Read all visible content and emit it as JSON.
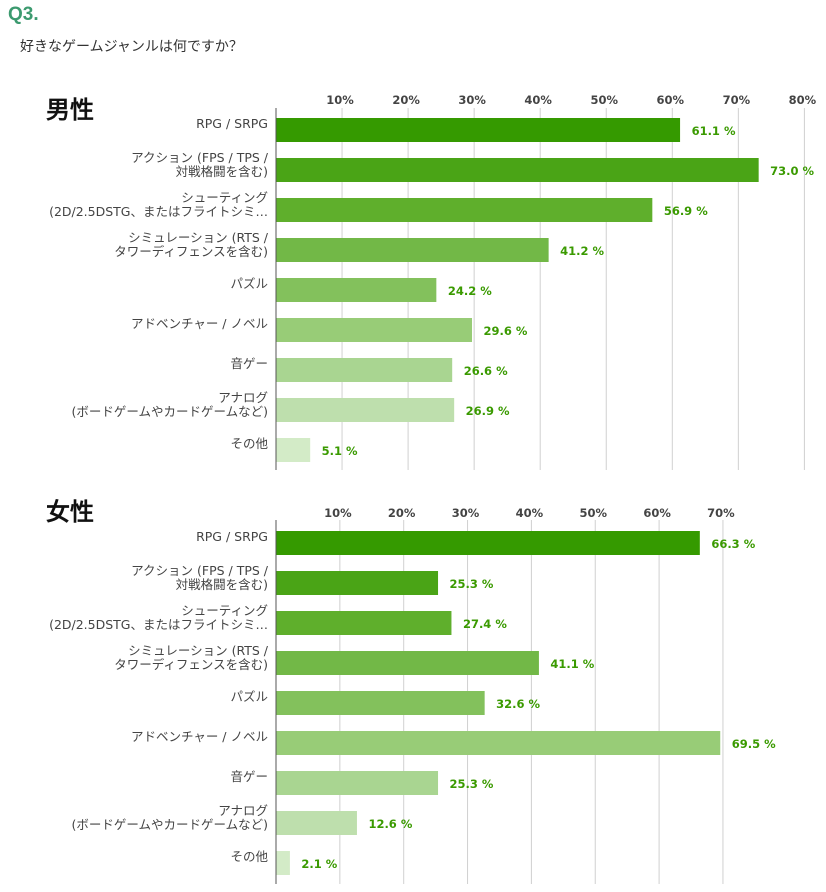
{
  "question": {
    "number": "Q3.",
    "text": "好きなゲームジャンルは何ですか？"
  },
  "palette": [
    "#359a00",
    "#4aa416",
    "#5faf2c",
    "#72b847",
    "#83c15c",
    "#98cc77",
    "#a9d591",
    "#bedfad",
    "#d3ebc7"
  ],
  "chart_data": [
    {
      "type": "bar",
      "orientation": "horizontal",
      "title": "男性",
      "categories": [
        [
          "RPG / SRPG"
        ],
        [
          "アクション (FPS / TPS /",
          "対戦格闘を含む)"
        ],
        [
          "シューティング",
          "(2D/2.5DSTG、またはフライトシミ…"
        ],
        [
          "シミュレーション (RTS /",
          "タワーディフェンスを含む)"
        ],
        [
          "パズル"
        ],
        [
          "アドベンチャー / ノベル"
        ],
        [
          "音ゲー"
        ],
        [
          "アナログ",
          "(ボードゲームやカードゲームなど)"
        ],
        [
          "その他"
        ]
      ],
      "values": [
        61.1,
        73.0,
        56.9,
        41.2,
        24.2,
        29.6,
        26.6,
        26.9,
        5.1
      ],
      "value_labels": [
        "61.1 %",
        "73.0 %",
        "56.9 %",
        "41.2 %",
        "24.2 %",
        "29.6 %",
        "26.6 %",
        "26.9 %",
        "5.1 %"
      ],
      "xticks": [
        10,
        20,
        30,
        40,
        50,
        60,
        70,
        80
      ],
      "xtick_labels": [
        "10%",
        "20%",
        "30%",
        "40%",
        "50%",
        "60%",
        "70%",
        "80%"
      ],
      "xlim": [
        0,
        80
      ],
      "grid": true,
      "xlabel": "",
      "ylabel": ""
    },
    {
      "type": "bar",
      "orientation": "horizontal",
      "title": "女性",
      "categories": [
        [
          "RPG / SRPG"
        ],
        [
          "アクション (FPS / TPS /",
          "対戦格闘を含む)"
        ],
        [
          "シューティング",
          "(2D/2.5DSTG、またはフライトシミ…"
        ],
        [
          "シミュレーション (RTS /",
          "タワーディフェンスを含む)"
        ],
        [
          "パズル"
        ],
        [
          "アドベンチャー / ノベル"
        ],
        [
          "音ゲー"
        ],
        [
          "アナログ",
          "(ボードゲームやカードゲームなど)"
        ],
        [
          "その他"
        ]
      ],
      "values": [
        66.3,
        25.3,
        27.4,
        41.1,
        32.6,
        69.5,
        25.3,
        12.6,
        2.1
      ],
      "value_labels": [
        "66.3 %",
        "25.3 %",
        "27.4 %",
        "41.1 %",
        "32.6 %",
        "69.5 %",
        "25.3 %",
        "12.6 %",
        "2.1 %"
      ],
      "xticks": [
        10,
        20,
        30,
        40,
        50,
        60,
        70
      ],
      "xtick_labels": [
        "10%",
        "20%",
        "30%",
        "40%",
        "50%",
        "60%",
        "70%"
      ],
      "xlim": [
        0,
        75
      ],
      "grid": true,
      "xlabel": "",
      "ylabel": ""
    }
  ]
}
